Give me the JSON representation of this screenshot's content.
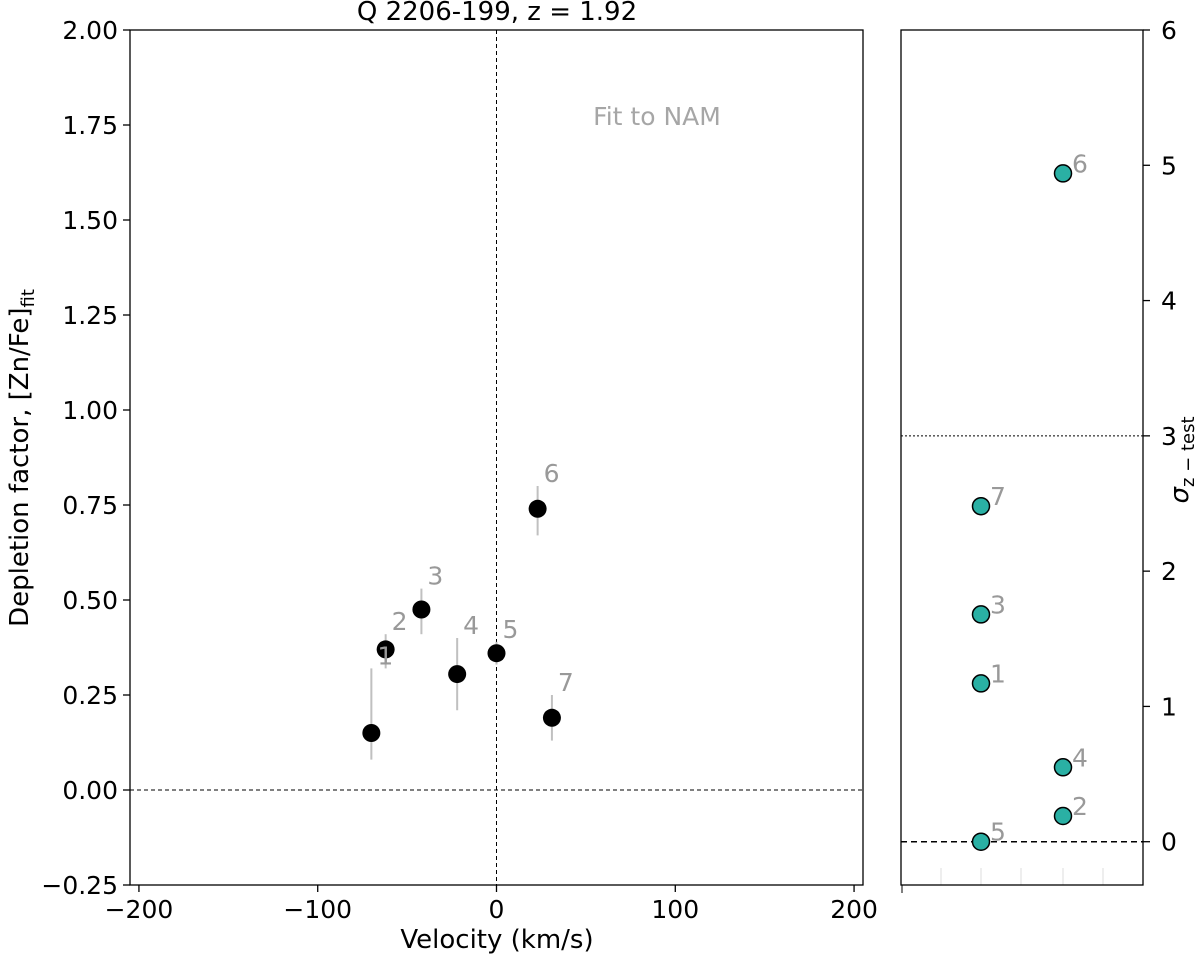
{
  "chart_data": [
    {
      "type": "scatter",
      "title": "Q 2206-199, z = 1.92",
      "xlabel": "Velocity (km/s)",
      "ylabel": "Depletion factor, [Zn/Fe]",
      "ylabel_sub": "fit",
      "xlim": [
        -205,
        205
      ],
      "ylim": [
        -0.25,
        2.0
      ],
      "xticks": [
        -200,
        -100,
        0,
        100,
        200
      ],
      "xtick_labels": [
        "−200",
        "−100",
        "0",
        "100",
        "200"
      ],
      "yticks": [
        -0.25,
        0.0,
        0.25,
        0.5,
        0.75,
        1.0,
        1.25,
        1.5,
        1.75,
        2.0
      ],
      "ytick_labels": [
        "−0.25",
        "0.00",
        "0.25",
        "0.50",
        "0.75",
        "1.00",
        "1.25",
        "1.50",
        "1.75",
        "2.00"
      ],
      "annotation": "Fit to NAM",
      "reference_lines": {
        "y": 0.0,
        "x": 0
      },
      "marker_color": "#000000",
      "errorbar_color": "#c0c0c0",
      "points": [
        {
          "label": "1",
          "x": -70,
          "y": 0.15,
          "err_low": 0.08,
          "err_high": 0.32
        },
        {
          "label": "2",
          "x": -62,
          "y": 0.37,
          "err_low": 0.32,
          "err_high": 0.41
        },
        {
          "label": "3",
          "x": -42,
          "y": 0.475,
          "err_low": 0.41,
          "err_high": 0.53
        },
        {
          "label": "4",
          "x": -22,
          "y": 0.305,
          "err_low": 0.21,
          "err_high": 0.4
        },
        {
          "label": "5",
          "x": 0,
          "y": 0.36,
          "err_low": 0.33,
          "err_high": 0.39
        },
        {
          "label": "6",
          "x": 23,
          "y": 0.74,
          "err_low": 0.67,
          "err_high": 0.8
        },
        {
          "label": "7",
          "x": 31,
          "y": 0.19,
          "err_low": 0.13,
          "err_high": 0.25
        }
      ]
    },
    {
      "type": "scatter",
      "ylabel": "σ",
      "ylabel_sub": "z − test",
      "ylim": [
        -0.32,
        6.0
      ],
      "yticks": [
        0,
        1,
        2,
        3,
        4,
        5,
        6
      ],
      "ytick_labels": [
        "0",
        "1",
        "2",
        "3",
        "4",
        "5",
        "6"
      ],
      "threshold_line": 3,
      "zero_line": 0,
      "marker_color": "#2ab0a4",
      "points": [
        {
          "label": "1",
          "column": 1,
          "y": 1.17
        },
        {
          "label": "2",
          "column": 2,
          "y": 0.19
        },
        {
          "label": "3",
          "column": 1,
          "y": 1.68
        },
        {
          "label": "4",
          "column": 2,
          "y": 0.55
        },
        {
          "label": "5",
          "column": 1,
          "y": 0.0
        },
        {
          "label": "6",
          "column": 2,
          "y": 4.94
        },
        {
          "label": "7",
          "column": 1,
          "y": 2.48
        }
      ]
    }
  ]
}
